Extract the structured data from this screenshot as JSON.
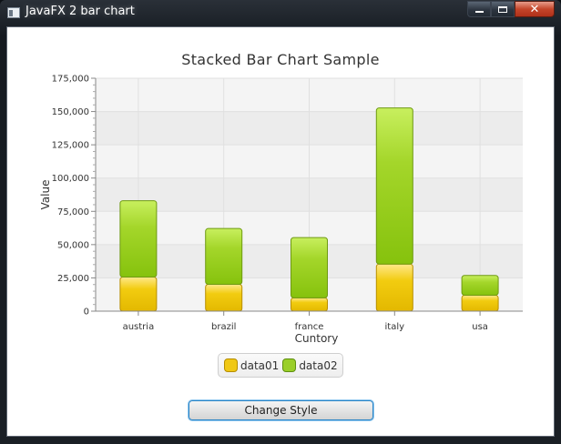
{
  "window": {
    "title": "JavaFX 2 bar chart",
    "minimize_icon": "minimize-icon",
    "maximize_icon": "maximize-icon",
    "close_icon": "close-icon"
  },
  "chart_data": {
    "type": "bar",
    "stacked": true,
    "title": "Stacked Bar Chart Sample",
    "xlabel": "Cuntory",
    "ylabel": "Value",
    "categories": [
      "austria",
      "brazil",
      "france",
      "italy",
      "usa"
    ],
    "series": [
      {
        "name": "data01",
        "values": [
          25601,
          20148,
          10000,
          35407,
          12000
        ],
        "color": "#f3cf16"
      },
      {
        "name": "data02",
        "values": [
          57401,
          41941,
          45263,
          117320,
          14845
        ],
        "color": "#a2d42a"
      }
    ],
    "ylim": [
      0,
      175000
    ],
    "y_ticks": [
      "0",
      "25,000",
      "50,000",
      "75,000",
      "100,000",
      "125,000",
      "150,000",
      "175,000"
    ],
    "grid": true,
    "legend_position": "bottom"
  },
  "legend": {
    "items": [
      {
        "label": "data01",
        "color": "#f0c814"
      },
      {
        "label": "data02",
        "color": "#9acf28"
      }
    ]
  },
  "button": {
    "label": "Change Style"
  }
}
